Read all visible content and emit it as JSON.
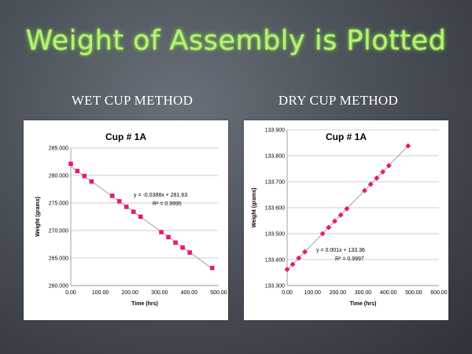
{
  "slide": {
    "title": "Weight of Assembly is Plotted",
    "sections": [
      "WET CUP METHOD",
      "DRY CUP METHOD"
    ]
  },
  "colors": {
    "title_green": "#b8f07a",
    "marker_pink": "#e6197a",
    "trendline": "#9aa0a6",
    "grid": "#bfbfbf"
  },
  "chart_data": [
    {
      "type": "scatter",
      "title": "Cup # 1A",
      "xlabel": "Time (hrs)",
      "ylabel": "Weight (grams)",
      "xlim": [
        0,
        500
      ],
      "ylim": [
        260,
        285
      ],
      "xticks": [
        "0.00",
        "100.00",
        "200.00",
        "300.00",
        "400.00",
        "500.00"
      ],
      "yticks": [
        "260.000",
        "265.000",
        "270.000",
        "275.000",
        "280.000",
        "285.000"
      ],
      "grid": true,
      "marker": "square",
      "trendline": {
        "slope": -0.0388,
        "intercept": 281.63
      },
      "equation": "y = -0.0388x + 281.63",
      "r2": "R² = 0.9995",
      "x": [
        0,
        22,
        46,
        70,
        140,
        164,
        188,
        212,
        236,
        306,
        330,
        354,
        378,
        402,
        478
      ],
      "y": [
        282.1,
        280.8,
        279.9,
        278.9,
        276.3,
        275.3,
        274.3,
        273.4,
        272.5,
        269.7,
        268.8,
        267.8,
        266.9,
        266.0,
        263.2
      ]
    },
    {
      "type": "scatter",
      "title": "Cup # 1A",
      "xlabel": "Time (hrs)",
      "ylabel": "Weight (grams)",
      "xlim": [
        0,
        600
      ],
      "ylim": [
        133.3,
        133.9
      ],
      "xticks": [
        "0.00",
        "100.00",
        "200.00",
        "300.00",
        "400.00",
        "500.00",
        "600.00"
      ],
      "yticks": [
        "133.300",
        "133.400",
        "133.500",
        "133.600",
        "133.700",
        "133.800",
        "133.900"
      ],
      "grid": true,
      "marker": "diamond",
      "trendline": {
        "slope": 0.001,
        "intercept": 133.36
      },
      "equation": "y = 0.001x + 133.36",
      "r2": "R² = 0.9997",
      "x": [
        0,
        22,
        46,
        70,
        140,
        164,
        188,
        212,
        236,
        306,
        330,
        354,
        378,
        402,
        478
      ],
      "y": [
        133.362,
        133.382,
        133.406,
        133.43,
        133.5,
        133.524,
        133.548,
        133.572,
        133.596,
        133.666,
        133.69,
        133.714,
        133.738,
        133.762,
        133.838
      ]
    }
  ]
}
